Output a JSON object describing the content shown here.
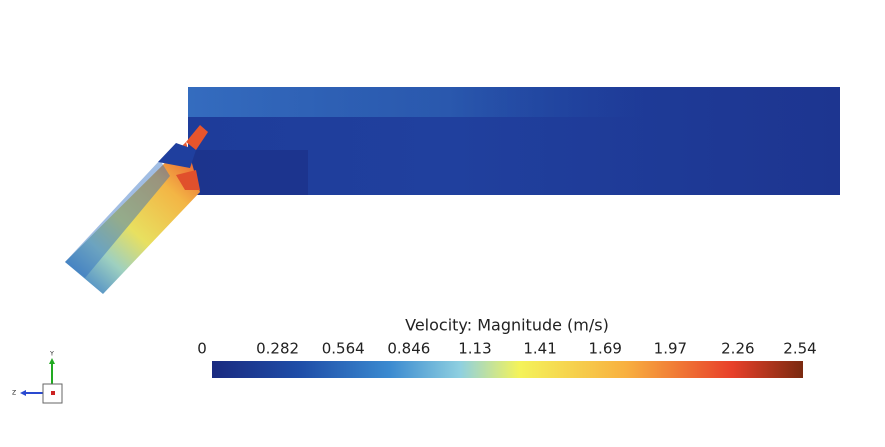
{
  "colorbar": {
    "title": "Velocity: Magnitude (m/s)",
    "ticks": [
      0,
      0.282,
      0.564,
      0.846,
      1.13,
      1.41,
      1.69,
      1.97,
      2.26,
      2.54
    ]
  },
  "triad": {
    "y_label": "Y",
    "z_label": "Z"
  }
}
